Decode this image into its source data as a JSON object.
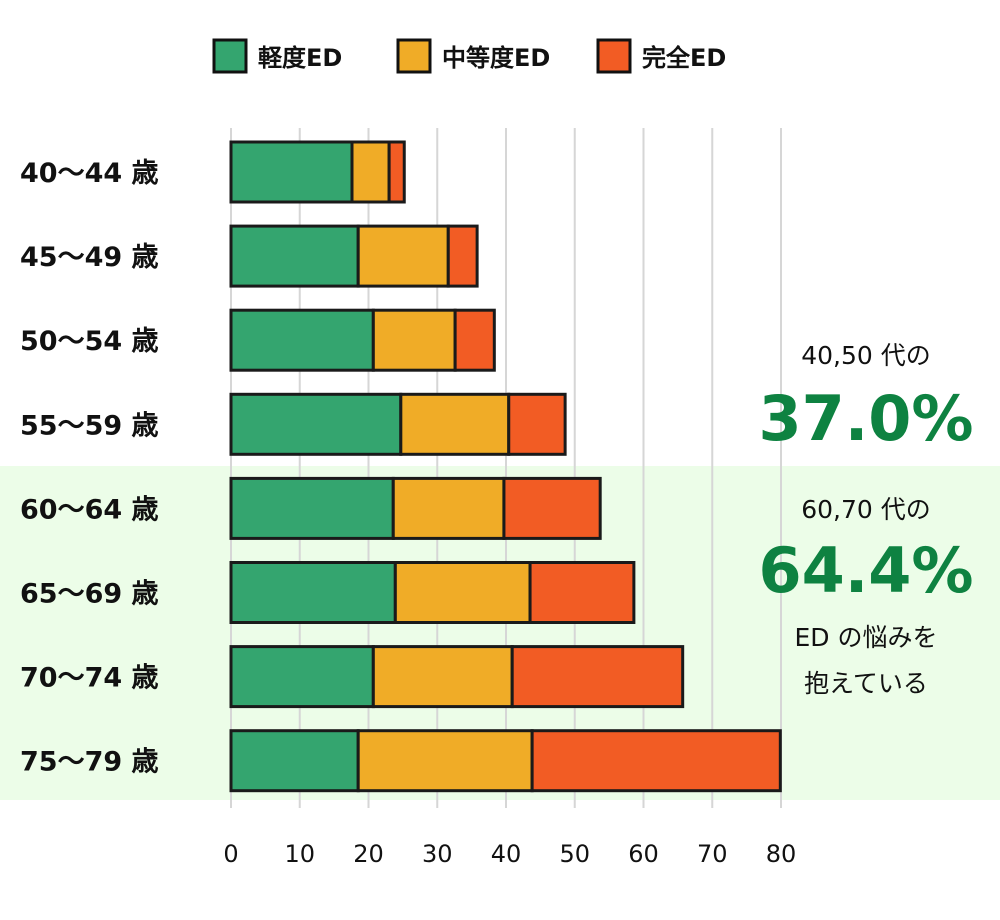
{
  "chart_data": {
    "type": "bar",
    "orientation": "horizontal",
    "stacked": true,
    "categories": [
      "40〜44 歳",
      "45〜49 歳",
      "50〜54 歳",
      "55〜59 歳",
      "60〜64 歳",
      "65〜69 歳",
      "70〜74 歳",
      "75〜79 歳"
    ],
    "series": [
      {
        "name": "軽度ED",
        "color": "#34a56f",
        "values": [
          17.6,
          18.5,
          20.7,
          24.7,
          23.6,
          23.9,
          20.7,
          18.5
        ]
      },
      {
        "name": "中等度ED",
        "color": "#f0ac27",
        "values": [
          5.4,
          13.1,
          11.9,
          15.7,
          16.1,
          19.6,
          20.2,
          25.3
        ]
      },
      {
        "name": "完全ED",
        "color": "#f25c24",
        "values": [
          2.2,
          4.2,
          5.7,
          8.2,
          14.0,
          15.1,
          24.8,
          36.1
        ]
      }
    ],
    "xlim": [
      0,
      80
    ],
    "xticks": [
      "0",
      "10",
      "20",
      "30",
      "40",
      "50",
      "60",
      "70",
      "80"
    ],
    "grid": true,
    "legend": "top",
    "highlight_categories": [
      "60〜64 歳",
      "65〜69 歳",
      "70〜74 歳",
      "75〜79 歳"
    ],
    "highlight_color": "#ecfde8",
    "annotations": {
      "a1_label": "40,50 代の",
      "a1_value": "37.0%",
      "a2_label": "60,70 代の",
      "a2_value": "64.4%",
      "a2_note_line1": "ED の悩みを",
      "a2_note_line2": "抱えている",
      "value_color": "#0e8241"
    }
  }
}
